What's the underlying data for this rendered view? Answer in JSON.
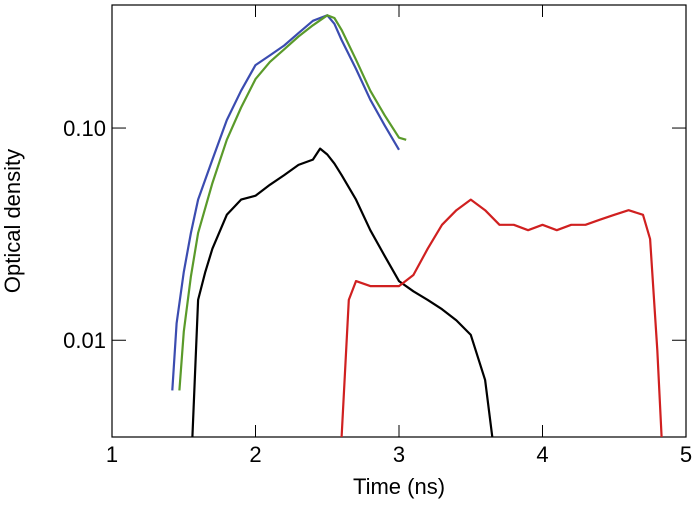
{
  "chart_data": {
    "type": "line",
    "x_label": "Time (ns)",
    "y_label": "Optical density",
    "xlim": [
      1,
      5
    ],
    "xticks": [
      1,
      2,
      3,
      4,
      5
    ],
    "ylim": [
      0.0035,
      0.38
    ],
    "yticks": [
      {
        "value": 0.01,
        "label": "0.01"
      },
      {
        "value": 0.1,
        "label": "0.10"
      }
    ],
    "y_scale": "log",
    "grid": false,
    "series": [
      {
        "color": "#3b4cb0",
        "x": [
          1.42,
          1.45,
          1.5,
          1.55,
          1.6,
          1.7,
          1.8,
          1.9,
          2.0,
          2.1,
          2.2,
          2.3,
          2.4,
          2.45,
          2.5,
          2.55,
          2.6,
          2.7,
          2.8,
          2.9,
          3.0
        ],
        "values": [
          0.0058,
          0.012,
          0.021,
          0.032,
          0.046,
          0.071,
          0.109,
          0.15,
          0.198,
          0.22,
          0.245,
          0.28,
          0.32,
          0.33,
          0.34,
          0.31,
          0.26,
          0.19,
          0.136,
          0.103,
          0.079
        ]
      },
      {
        "color": "#5a9a2a",
        "x": [
          1.47,
          1.5,
          1.55,
          1.6,
          1.7,
          1.8,
          1.9,
          2.0,
          2.1,
          2.2,
          2.3,
          2.4,
          2.5,
          2.55,
          2.6,
          2.7,
          2.8,
          2.9,
          3.0,
          3.05
        ],
        "values": [
          0.0058,
          0.011,
          0.02,
          0.032,
          0.055,
          0.088,
          0.125,
          0.17,
          0.205,
          0.235,
          0.27,
          0.305,
          0.34,
          0.33,
          0.29,
          0.21,
          0.15,
          0.115,
          0.09,
          0.088
        ]
      },
      {
        "color": "#000000",
        "x": [
          1.56,
          1.6,
          1.65,
          1.7,
          1.8,
          1.9,
          2.0,
          2.1,
          2.2,
          2.3,
          2.4,
          2.45,
          2.5,
          2.55,
          2.6,
          2.7,
          2.8,
          2.9,
          3.0,
          3.1,
          3.2,
          3.3,
          3.4,
          3.5,
          3.6,
          3.65
        ],
        "values": [
          0.0035,
          0.0155,
          0.021,
          0.027,
          0.039,
          0.046,
          0.048,
          0.054,
          0.06,
          0.067,
          0.071,
          0.08,
          0.075,
          0.068,
          0.06,
          0.046,
          0.033,
          0.025,
          0.019,
          0.017,
          0.0155,
          0.014,
          0.0124,
          0.0106,
          0.0065,
          0.0035
        ]
      },
      {
        "color": "#d02020",
        "x": [
          2.6,
          2.65,
          2.7,
          2.8,
          2.9,
          3.0,
          3.1,
          3.2,
          3.3,
          3.4,
          3.5,
          3.6,
          3.7,
          3.8,
          3.9,
          4.0,
          4.1,
          4.2,
          4.3,
          4.4,
          4.5,
          4.6,
          4.7,
          4.75,
          4.8,
          4.83
        ],
        "values": [
          0.0035,
          0.0155,
          0.019,
          0.018,
          0.018,
          0.018,
          0.0203,
          0.027,
          0.035,
          0.041,
          0.046,
          0.041,
          0.035,
          0.035,
          0.033,
          0.035,
          0.033,
          0.035,
          0.035,
          0.037,
          0.039,
          0.041,
          0.039,
          0.03,
          0.009,
          0.0035
        ]
      }
    ]
  }
}
